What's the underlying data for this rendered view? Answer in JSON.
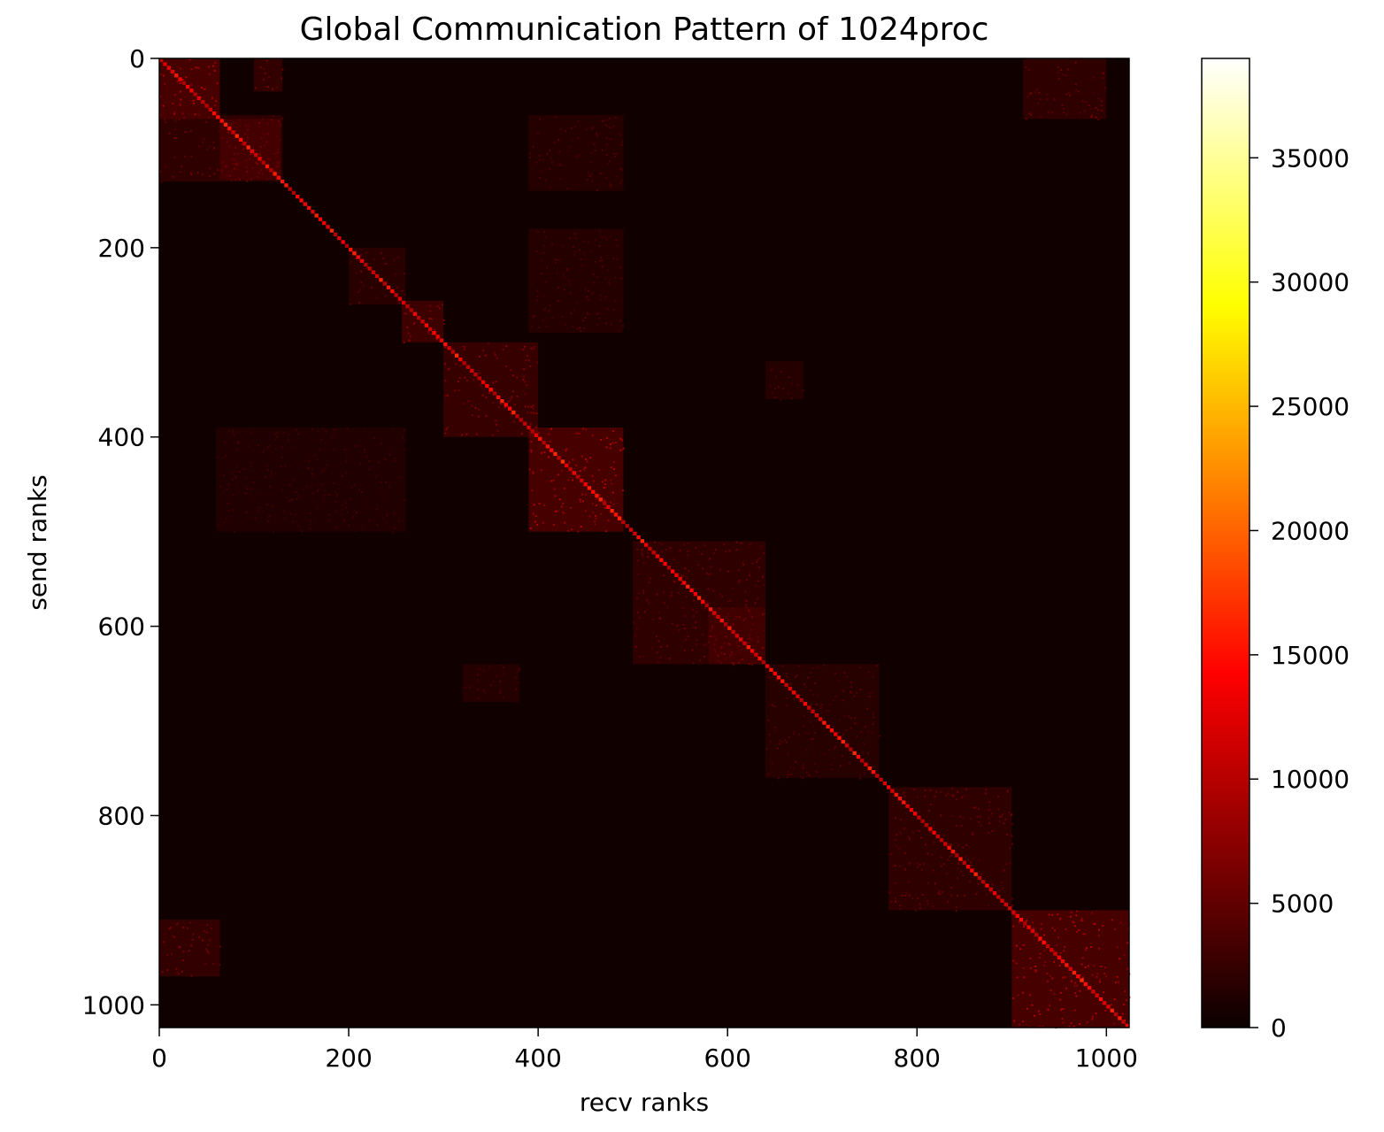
{
  "chart_data": {
    "type": "heatmap",
    "title": "Global Communication Pattern of 1024proc",
    "xlabel": "recv ranks",
    "ylabel": "send ranks",
    "n_ranks": 1024,
    "xlim": [
      0,
      1024
    ],
    "ylim": [
      1024,
      0
    ],
    "x_ticks": [
      0,
      200,
      400,
      600,
      800,
      1000
    ],
    "y_ticks": [
      0,
      200,
      400,
      600,
      800,
      1000
    ],
    "x_tick_labels": [
      "0",
      "200",
      "400",
      "600",
      "800",
      "1000"
    ],
    "y_tick_labels": [
      "0",
      "200",
      "400",
      "600",
      "800",
      "1000"
    ],
    "colormap": "hot",
    "colorbar": {
      "vmin": 0,
      "vmax": 39000,
      "ticks": [
        0,
        5000,
        10000,
        15000,
        20000,
        25000,
        30000,
        35000
      ],
      "tick_labels": [
        "0",
        "5000",
        "10000",
        "15000",
        "20000",
        "25000",
        "30000",
        "35000"
      ],
      "stops": [
        "#0b0000",
        "#ff0000",
        "#ffff00",
        "#ffffff"
      ]
    },
    "grid": false,
    "background_value": 300,
    "diagonal_band": {
      "start": 0,
      "end": 1024,
      "value": 13000,
      "width": 4
    },
    "blocks": [
      {
        "x": [
          0,
          64
        ],
        "y": [
          0,
          64
        ],
        "value": 6000
      },
      {
        "x": [
          64,
          128
        ],
        "y": [
          64,
          128
        ],
        "value": 5500
      },
      {
        "x": [
          0,
          130
        ],
        "y": [
          60,
          130
        ],
        "value": 3500
      },
      {
        "x": [
          100,
          130
        ],
        "y": [
          0,
          35
        ],
        "value": 4000
      },
      {
        "x": [
          256,
          300
        ],
        "y": [
          256,
          300
        ],
        "value": 5000
      },
      {
        "x": [
          300,
          400
        ],
        "y": [
          300,
          400
        ],
        "value": 4500
      },
      {
        "x": [
          390,
          490
        ],
        "y": [
          390,
          500
        ],
        "value": 6000
      },
      {
        "x": [
          200,
          260
        ],
        "y": [
          200,
          260
        ],
        "value": 3000
      },
      {
        "x": [
          390,
          490
        ],
        "y": [
          60,
          140
        ],
        "value": 2500
      },
      {
        "x": [
          390,
          490
        ],
        "y": [
          180,
          290
        ],
        "value": 2500
      },
      {
        "x": [
          60,
          260
        ],
        "y": [
          390,
          500
        ],
        "value": 2000
      },
      {
        "x": [
          500,
          640
        ],
        "y": [
          510,
          640
        ],
        "value": 3500
      },
      {
        "x": [
          640,
          760
        ],
        "y": [
          640,
          760
        ],
        "value": 2800
      },
      {
        "x": [
          770,
          900
        ],
        "y": [
          770,
          900
        ],
        "value": 3500
      },
      {
        "x": [
          900,
          1024
        ],
        "y": [
          900,
          1024
        ],
        "value": 6000
      },
      {
        "x": [
          0,
          64
        ],
        "y": [
          910,
          970
        ],
        "value": 4000
      },
      {
        "x": [
          912,
          1000
        ],
        "y": [
          0,
          64
        ],
        "value": 3500
      },
      {
        "x": [
          640,
          680
        ],
        "y": [
          320,
          360
        ],
        "value": 2500
      },
      {
        "x": [
          320,
          380
        ],
        "y": [
          640,
          680
        ],
        "value": 2500
      },
      {
        "x": [
          580,
          640
        ],
        "y": [
          580,
          640
        ],
        "value": 4000
      }
    ]
  }
}
